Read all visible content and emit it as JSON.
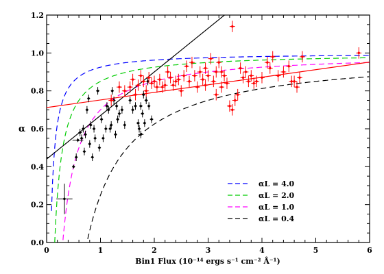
{
  "chart_data": {
    "type": "scatter",
    "title": "",
    "xlabel": "Bin1 Flux (10⁻¹⁴ ergs s⁻¹ cm⁻² Å⁻¹)",
    "ylabel": "α",
    "xlim": [
      0,
      6
    ],
    "ylim": [
      0,
      1.2
    ],
    "xticks": [
      "0",
      "1",
      "2",
      "3",
      "4",
      "5",
      "6"
    ],
    "yticks": [
      "0.0",
      "0.2",
      "0.4",
      "0.6",
      "0.8",
      "1.0",
      "1.2"
    ],
    "grid": false,
    "legend_position": "bottom-right",
    "legend": [
      {
        "label": "αL = 4.0",
        "alphaL": 4.0,
        "color": "#0000ff"
      },
      {
        "label": "αL = 2.0",
        "alphaL": 2.0,
        "color": "#00cc00"
      },
      {
        "label": "αL = 1.0",
        "alphaL": 1.0,
        "color": "#ff00ff"
      },
      {
        "label": "αL = 0.4",
        "alphaL": 0.4,
        "color": "#000000"
      }
    ],
    "series": [
      {
        "color": "#000000",
        "points": [
          [
            0.33,
            0.23,
            0.15,
            0.08
          ],
          [
            0.5,
            0.4,
            0.02,
            0.01
          ],
          [
            0.55,
            0.45,
            0.02,
            0.02
          ],
          [
            0.58,
            0.54,
            0.1,
            0.01
          ],
          [
            0.62,
            0.58,
            0.03,
            0.02
          ],
          [
            0.65,
            0.55,
            0.03,
            0.02
          ],
          [
            0.68,
            0.6,
            0.02,
            0.02
          ],
          [
            0.7,
            0.48,
            0.02,
            0.02
          ],
          [
            0.72,
            0.57,
            0.02,
            0.02
          ],
          [
            0.75,
            0.7,
            0.02,
            0.02
          ],
          [
            0.78,
            0.76,
            0.02,
            0.02
          ],
          [
            0.8,
            0.52,
            0.02,
            0.02
          ],
          [
            0.82,
            0.62,
            0.02,
            0.02
          ],
          [
            0.85,
            0.45,
            0.02,
            0.02
          ],
          [
            0.88,
            0.6,
            0.02,
            0.02
          ],
          [
            0.9,
            0.55,
            0.02,
            0.02
          ],
          [
            0.95,
            0.8,
            0.03,
            0.02
          ],
          [
            0.98,
            0.5,
            0.02,
            0.02
          ],
          [
            1.02,
            0.65,
            0.02,
            0.02
          ],
          [
            1.05,
            0.55,
            0.02,
            0.02
          ],
          [
            1.1,
            0.6,
            0.02,
            0.02
          ],
          [
            1.12,
            0.72,
            0.03,
            0.02
          ],
          [
            1.15,
            0.7,
            0.02,
            0.02
          ],
          [
            1.18,
            0.6,
            0.02,
            0.02
          ],
          [
            1.2,
            0.62,
            0.02,
            0.02
          ],
          [
            1.22,
            0.8,
            0.02,
            0.02
          ],
          [
            1.25,
            0.75,
            0.03,
            0.02
          ],
          [
            1.28,
            0.57,
            0.02,
            0.02
          ],
          [
            1.3,
            0.72,
            0.02,
            0.02
          ],
          [
            1.32,
            0.65,
            0.02,
            0.02
          ],
          [
            1.35,
            0.68,
            0.02,
            0.02
          ],
          [
            1.4,
            0.7,
            0.02,
            0.02
          ],
          [
            1.45,
            0.62,
            0.02,
            0.02
          ],
          [
            1.55,
            0.75,
            0.02,
            0.02
          ],
          [
            1.6,
            0.7,
            0.02,
            0.02
          ],
          [
            1.65,
            0.72,
            0.02,
            0.02
          ],
          [
            1.7,
            0.63,
            0.03,
            0.02
          ],
          [
            1.72,
            0.6,
            0.02,
            0.02
          ],
          [
            1.75,
            0.72,
            0.03,
            0.02
          ],
          [
            1.78,
            0.68,
            0.03,
            0.02
          ],
          [
            1.8,
            0.78,
            0.03,
            0.02
          ],
          [
            1.82,
            0.63,
            0.02,
            0.02
          ],
          [
            1.85,
            0.75,
            0.03,
            0.02
          ],
          [
            1.88,
            0.85,
            0.02,
            0.02
          ],
          [
            1.9,
            0.72,
            0.02,
            0.02
          ],
          [
            1.95,
            0.65,
            0.03,
            0.02
          ],
          [
            1.75,
            0.57,
            0.05,
            0.02
          ]
        ]
      },
      {
        "color": "#ff0000",
        "points": [
          [
            1.2,
            0.75,
            0.05,
            0.03
          ],
          [
            1.35,
            0.82,
            0.05,
            0.03
          ],
          [
            1.45,
            0.8,
            0.05,
            0.03
          ],
          [
            1.55,
            0.82,
            0.05,
            0.03
          ],
          [
            1.6,
            0.86,
            0.05,
            0.03
          ],
          [
            1.7,
            0.83,
            0.05,
            0.03
          ],
          [
            1.75,
            0.88,
            0.05,
            0.03
          ],
          [
            1.8,
            0.85,
            0.05,
            0.03
          ],
          [
            1.85,
            0.8,
            0.05,
            0.03
          ],
          [
            1.9,
            0.87,
            0.05,
            0.03
          ],
          [
            1.95,
            0.84,
            0.05,
            0.03
          ],
          [
            2.0,
            0.85,
            0.05,
            0.03
          ],
          [
            2.05,
            0.82,
            0.05,
            0.03
          ],
          [
            2.1,
            0.86,
            0.05,
            0.03
          ],
          [
            2.15,
            0.82,
            0.05,
            0.03
          ],
          [
            2.2,
            0.83,
            0.05,
            0.03
          ],
          [
            2.25,
            0.9,
            0.05,
            0.03
          ],
          [
            2.3,
            0.87,
            0.05,
            0.03
          ],
          [
            2.4,
            0.85,
            0.05,
            0.03
          ],
          [
            2.45,
            0.86,
            0.05,
            0.03
          ],
          [
            2.5,
            0.8,
            0.05,
            0.03
          ],
          [
            2.55,
            0.88,
            0.05,
            0.03
          ],
          [
            2.6,
            0.93,
            0.05,
            0.03
          ],
          [
            2.65,
            0.85,
            0.05,
            0.03
          ],
          [
            2.7,
            0.95,
            0.05,
            0.03
          ],
          [
            2.75,
            0.88,
            0.05,
            0.03
          ],
          [
            2.8,
            0.82,
            0.05,
            0.03
          ],
          [
            2.85,
            0.9,
            0.05,
            0.03
          ],
          [
            2.9,
            0.86,
            0.05,
            0.03
          ],
          [
            2.95,
            0.92,
            0.05,
            0.03
          ],
          [
            3.0,
            0.88,
            0.05,
            0.03
          ],
          [
            3.05,
            0.97,
            0.05,
            0.03
          ],
          [
            3.1,
            0.85,
            0.05,
            0.03
          ],
          [
            3.15,
            0.9,
            0.05,
            0.03
          ],
          [
            3.2,
            0.95,
            0.05,
            0.03
          ],
          [
            3.25,
            0.9,
            0.05,
            0.03
          ],
          [
            3.3,
            0.88,
            0.05,
            0.03
          ],
          [
            3.35,
            0.84,
            0.05,
            0.03
          ],
          [
            3.4,
            0.72,
            0.05,
            0.03
          ],
          [
            3.45,
            0.7,
            0.05,
            0.03
          ],
          [
            3.5,
            0.75,
            0.05,
            0.03
          ],
          [
            3.55,
            0.78,
            0.05,
            0.03
          ],
          [
            3.6,
            0.92,
            0.05,
            0.03
          ],
          [
            3.65,
            0.87,
            0.05,
            0.03
          ],
          [
            3.7,
            0.9,
            0.05,
            0.03
          ],
          [
            3.75,
            0.85,
            0.05,
            0.03
          ],
          [
            3.8,
            0.88,
            0.05,
            0.03
          ],
          [
            3.9,
            0.85,
            0.05,
            0.03
          ],
          [
            4.0,
            0.87,
            0.05,
            0.03
          ],
          [
            4.1,
            0.95,
            0.05,
            0.03
          ],
          [
            4.2,
            0.98,
            0.05,
            0.03
          ],
          [
            4.3,
            0.88,
            0.05,
            0.03
          ],
          [
            4.4,
            0.9,
            0.05,
            0.03
          ],
          [
            4.5,
            0.93,
            0.05,
            0.03
          ],
          [
            4.55,
            0.85,
            0.05,
            0.03
          ],
          [
            4.6,
            0.85,
            0.05,
            0.03
          ],
          [
            4.65,
            0.82,
            0.05,
            0.03
          ],
          [
            4.7,
            0.87,
            0.05,
            0.03
          ],
          [
            4.75,
            0.98,
            0.05,
            0.03
          ],
          [
            5.8,
            1.0,
            0.05,
            0.03
          ],
          [
            3.45,
            1.14,
            0.05,
            0.03
          ],
          [
            3.15,
            0.78,
            0.05,
            0.03
          ],
          [
            3.25,
            0.82,
            0.05,
            0.03
          ],
          [
            2.95,
            0.83,
            0.05,
            0.03
          ],
          [
            2.35,
            0.83,
            0.05,
            0.03
          ],
          [
            1.65,
            0.78,
            0.05,
            0.03
          ],
          [
            3.85,
            0.84,
            0.05,
            0.03
          ],
          [
            4.15,
            0.92,
            0.05,
            0.03
          ]
        ]
      }
    ],
    "fit_lines": [
      {
        "color": "#000000",
        "intercept": 0.44,
        "slope": 0.23
      },
      {
        "color": "#ff0000",
        "intercept": 0.712,
        "slope": 0.04
      }
    ]
  }
}
